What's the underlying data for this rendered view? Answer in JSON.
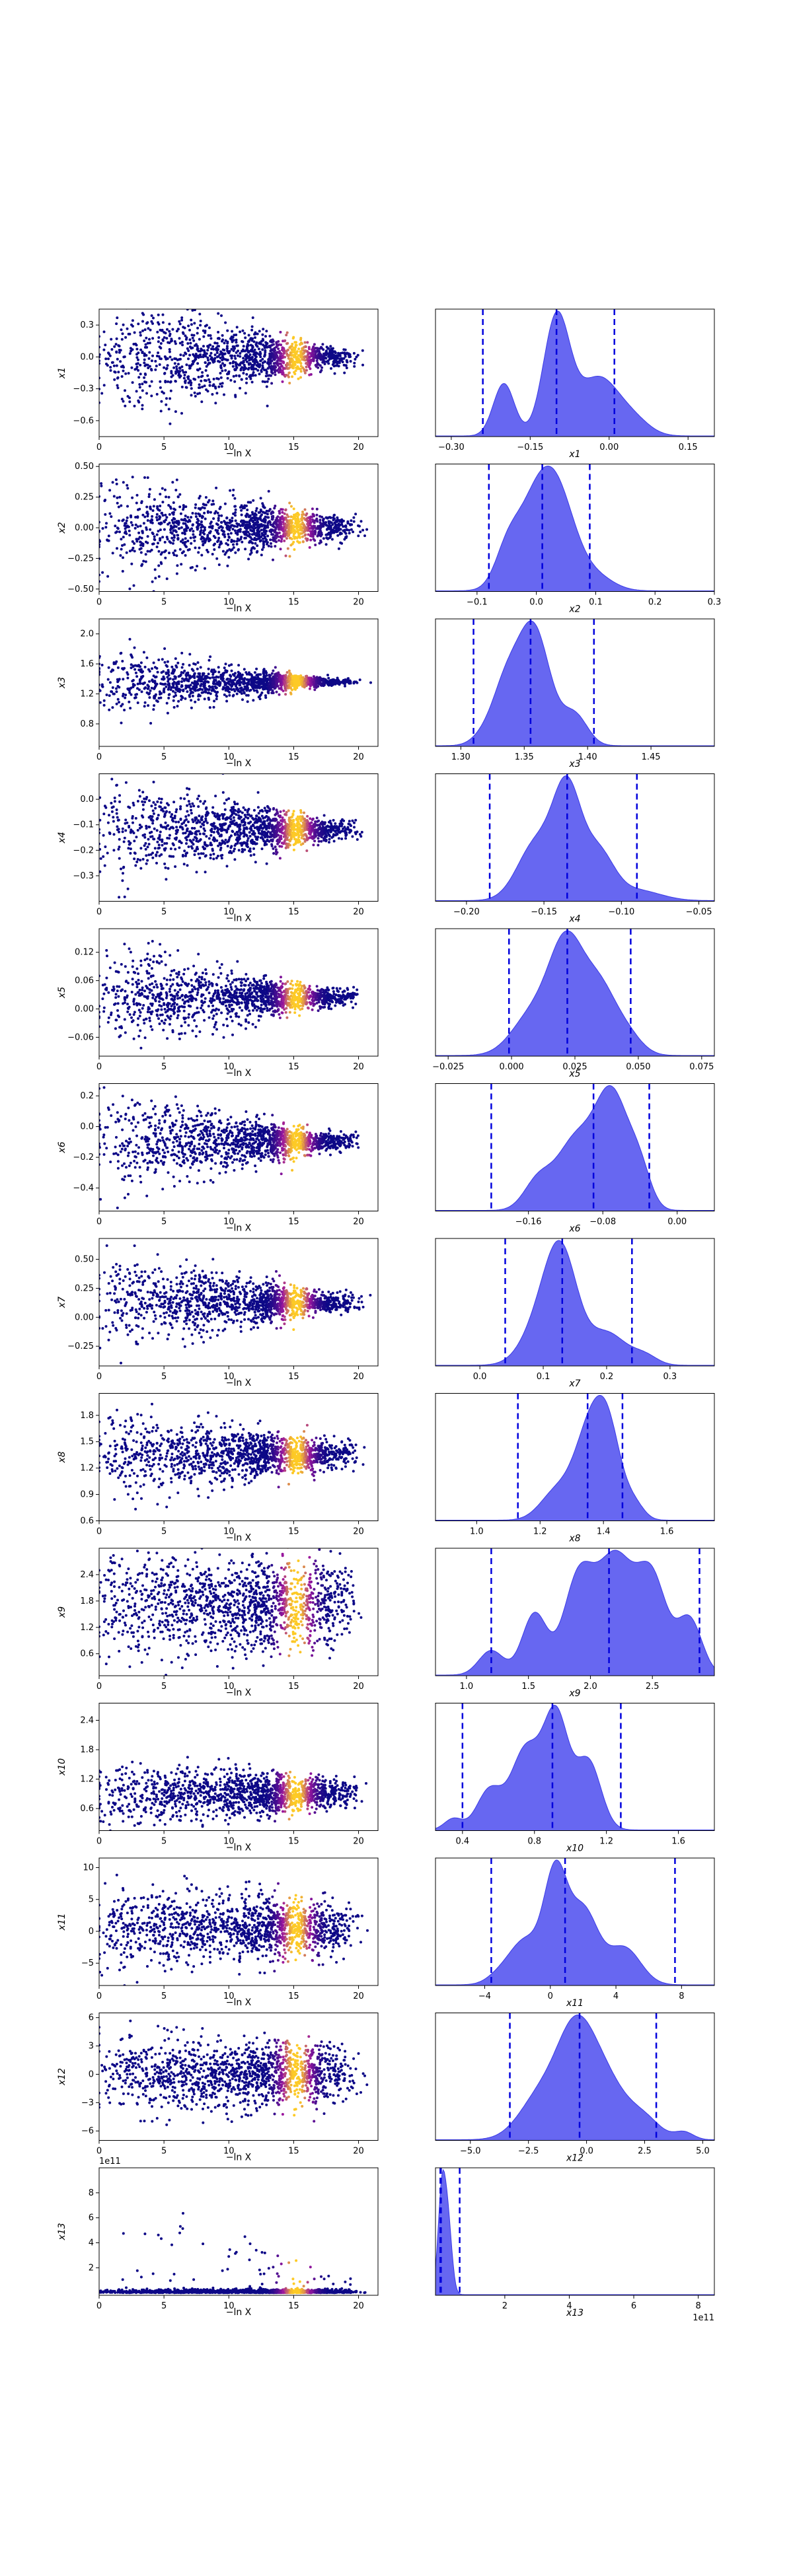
{
  "figure": {
    "colors": {
      "kde_fill": "#5a5af0",
      "kde_line": "#3a3ae6",
      "ci_line": "#0000dd",
      "scatter_low": "#0d0887",
      "scatter_mid": "#9c179e",
      "scatter_high": "#fdca26"
    }
  },
  "chart_data": [
    {
      "type": "scatter",
      "param": "x1",
      "xlabel": "−ln X",
      "ylabel": "x1",
      "xlim": [
        0,
        21.5
      ],
      "ylim": [
        -0.75,
        0.45
      ],
      "xticks": [
        "0",
        "5",
        "10",
        "15",
        "20"
      ],
      "yticks": [
        "−0.6",
        "−0.3",
        "0.0",
        "0.3"
      ],
      "ytick_values": [
        -0.6,
        -0.3,
        0,
        0.3
      ],
      "center": 0.0,
      "spread": [
        0.28,
        0.05
      ],
      "offset": ""
    },
    {
      "type": "area",
      "param": "x1",
      "xlabel": "x1",
      "xlim": [
        -0.33,
        0.2
      ],
      "xticks": [
        "−0.30",
        "−0.15",
        "0.00",
        "0.15"
      ],
      "xtick_values": [
        -0.3,
        -0.15,
        0,
        0.15
      ],
      "ci": [
        -0.24,
        -0.1,
        0.01
      ],
      "peaks": [
        [
          -0.1,
          0.025,
          1.0
        ],
        [
          -0.2,
          0.02,
          0.45
        ],
        [
          -0.02,
          0.04,
          0.5
        ],
        [
          0.05,
          0.03,
          0.1
        ]
      ]
    },
    {
      "type": "scatter",
      "param": "x2",
      "xlabel": "−ln X",
      "ylabel": "x2",
      "xlim": [
        0,
        21.5
      ],
      "ylim": [
        -0.52,
        0.52
      ],
      "xticks": [
        "0",
        "5",
        "10",
        "15",
        "20"
      ],
      "yticks": [
        "−0.50",
        "−0.25",
        "0.00",
        "0.25",
        "0.50"
      ],
      "ytick_values": [
        -0.5,
        -0.25,
        0,
        0.25,
        0.5
      ],
      "center": 0.0,
      "spread": [
        0.2,
        0.05
      ],
      "offset": ""
    },
    {
      "type": "area",
      "param": "x2",
      "xlabel": "x2",
      "xlim": [
        -0.17,
        0.3
      ],
      "xticks": [
        "−0.1",
        "0.0",
        "0.1",
        "0.2",
        "0.3"
      ],
      "xtick_values": [
        -0.1,
        0,
        0.1,
        0.2,
        0.3
      ],
      "ci": [
        -0.08,
        0.01,
        0.09
      ],
      "peaks": [
        [
          0.0,
          0.035,
          0.95
        ],
        [
          0.04,
          0.03,
          0.7
        ],
        [
          -0.05,
          0.02,
          0.3
        ],
        [
          0.1,
          0.03,
          0.15
        ]
      ]
    },
    {
      "type": "scatter",
      "param": "x3",
      "xlabel": "−ln X",
      "ylabel": "x3",
      "xlim": [
        0,
        21.5
      ],
      "ylim": [
        0.5,
        2.2
      ],
      "xticks": [
        "0",
        "5",
        "10",
        "15",
        "20"
      ],
      "yticks": [
        "0.8",
        "1.2",
        "1.6",
        "2.0"
      ],
      "ytick_values": [
        0.8,
        1.2,
        1.6,
        2.0
      ],
      "center": 1.36,
      "spread": [
        0.22,
        0.02
      ],
      "offset": ""
    },
    {
      "type": "area",
      "param": "x3",
      "xlabel": "x3",
      "xlim": [
        1.28,
        1.5
      ],
      "xticks": [
        "1.30",
        "1.35",
        "1.40",
        "1.45"
      ],
      "xtick_values": [
        1.3,
        1.35,
        1.4,
        1.45
      ],
      "ci": [
        1.31,
        1.355,
        1.405
      ],
      "peaks": [
        [
          1.357,
          0.013,
          1.0
        ],
        [
          1.335,
          0.01,
          0.4
        ],
        [
          1.39,
          0.01,
          0.25
        ],
        [
          1.32,
          0.01,
          0.1
        ]
      ]
    },
    {
      "type": "scatter",
      "param": "x4",
      "xlabel": "−ln X",
      "ylabel": "x4",
      "xlim": [
        0,
        21.5
      ],
      "ylim": [
        -0.4,
        0.1
      ],
      "xticks": [
        "0",
        "5",
        "10",
        "15",
        "20"
      ],
      "yticks": [
        "−0.3",
        "−0.2",
        "−0.1",
        "0.0"
      ],
      "ytick_values": [
        -0.3,
        -0.2,
        -0.1,
        0
      ],
      "center": -0.12,
      "spread": [
        0.1,
        0.02
      ],
      "offset": ""
    },
    {
      "type": "area",
      "param": "x4",
      "xlabel": "x4",
      "xlim": [
        -0.22,
        -0.04
      ],
      "xticks": [
        "−0.20",
        "−0.15",
        "−0.10",
        "−0.05"
      ],
      "xtick_values": [
        -0.2,
        -0.15,
        -0.1,
        -0.05
      ],
      "ci": [
        -0.185,
        -0.135,
        -0.09
      ],
      "peaks": [
        [
          -0.135,
          0.009,
          1.0
        ],
        [
          -0.155,
          0.012,
          0.55
        ],
        [
          -0.115,
          0.01,
          0.45
        ],
        [
          -0.09,
          0.015,
          0.1
        ]
      ]
    },
    {
      "type": "scatter",
      "param": "x5",
      "xlabel": "−ln X",
      "ylabel": "x5",
      "xlim": [
        0,
        21.5
      ],
      "ylim": [
        -0.1,
        0.17
      ],
      "xticks": [
        "0",
        "5",
        "10",
        "15",
        "20"
      ],
      "yticks": [
        "−0.06",
        "0.00",
        "0.06",
        "0.12"
      ],
      "ytick_values": [
        -0.06,
        0,
        0.06,
        0.12
      ],
      "center": 0.025,
      "spread": [
        0.05,
        0.008
      ],
      "offset": ""
    },
    {
      "type": "area",
      "param": "x5",
      "xlabel": "x5",
      "xlim": [
        -0.03,
        0.08
      ],
      "xticks": [
        "−0.025",
        "0.000",
        "0.025",
        "0.050",
        "0.075"
      ],
      "xtick_values": [
        -0.025,
        0,
        0.025,
        0.05,
        0.075
      ],
      "ci": [
        -0.001,
        0.022,
        0.047
      ],
      "peaks": [
        [
          0.022,
          0.007,
          1.0
        ],
        [
          0.035,
          0.006,
          0.5
        ],
        [
          0.008,
          0.008,
          0.35
        ],
        [
          0.045,
          0.006,
          0.2
        ]
      ]
    },
    {
      "type": "scatter",
      "param": "x6",
      "xlabel": "−ln X",
      "ylabel": "x6",
      "xlim": [
        0,
        21.5
      ],
      "ylim": [
        -0.55,
        0.28
      ],
      "xticks": [
        "0",
        "5",
        "10",
        "15",
        "20"
      ],
      "yticks": [
        "−0.4",
        "−0.2",
        "0.0",
        "0.2"
      ],
      "ytick_values": [
        -0.4,
        -0.2,
        0,
        0.2
      ],
      "center": -0.1,
      "spread": [
        0.16,
        0.03
      ],
      "offset": ""
    },
    {
      "type": "area",
      "param": "x6",
      "xlabel": "x6",
      "xlim": [
        -0.26,
        0.04
      ],
      "xticks": [
        "−0.16",
        "−0.08",
        "0.00"
      ],
      "xtick_values": [
        -0.16,
        -0.08,
        0
      ],
      "ci": [
        -0.2,
        -0.09,
        -0.03
      ],
      "peaks": [
        [
          -0.07,
          0.018,
          1.0
        ],
        [
          -0.11,
          0.02,
          0.6
        ],
        [
          -0.15,
          0.015,
          0.25
        ],
        [
          -0.04,
          0.012,
          0.3
        ]
      ]
    },
    {
      "type": "scatter",
      "param": "x7",
      "xlabel": "−ln X",
      "ylabel": "x7",
      "xlim": [
        0,
        21.5
      ],
      "ylim": [
        -0.42,
        0.68
      ],
      "xticks": [
        "0",
        "5",
        "10",
        "15",
        "20"
      ],
      "yticks": [
        "−0.25",
        "0.00",
        "0.25",
        "0.50"
      ],
      "ytick_values": [
        -0.25,
        0,
        0.25,
        0.5
      ],
      "center": 0.13,
      "spread": [
        0.2,
        0.04
      ],
      "offset": ""
    },
    {
      "type": "area",
      "param": "x7",
      "xlabel": "x7",
      "xlim": [
        -0.07,
        0.37
      ],
      "xticks": [
        "0.0",
        "0.1",
        "0.2",
        "0.3"
      ],
      "xtick_values": [
        0,
        0.1,
        0.2,
        0.3
      ],
      "ci": [
        0.04,
        0.13,
        0.24
      ],
      "peaks": [
        [
          0.13,
          0.025,
          1.0
        ],
        [
          0.1,
          0.03,
          0.5
        ],
        [
          0.2,
          0.03,
          0.35
        ],
        [
          0.26,
          0.02,
          0.1
        ]
      ]
    },
    {
      "type": "scatter",
      "param": "x8",
      "xlabel": "−ln X",
      "ylabel": "x8",
      "xlim": [
        0,
        21.5
      ],
      "ylim": [
        0.6,
        2.05
      ],
      "xticks": [
        "0",
        "5",
        "10",
        "15",
        "20"
      ],
      "yticks": [
        "0.6",
        "0.9",
        "1.2",
        "1.5",
        "1.8"
      ],
      "ytick_values": [
        0.6,
        0.9,
        1.2,
        1.5,
        1.8
      ],
      "center": 1.35,
      "spread": [
        0.25,
        0.08
      ],
      "offset": ""
    },
    {
      "type": "area",
      "param": "x8",
      "xlabel": "x8",
      "xlim": [
        0.87,
        1.75
      ],
      "xticks": [
        "1.0",
        "1.2",
        "1.4",
        "1.6"
      ],
      "xtick_values": [
        1,
        1.2,
        1.4,
        1.6
      ],
      "ci": [
        1.13,
        1.35,
        1.46
      ],
      "peaks": [
        [
          1.36,
          0.05,
          1.0
        ],
        [
          1.42,
          0.04,
          0.7
        ],
        [
          1.25,
          0.05,
          0.3
        ],
        [
          1.5,
          0.03,
          0.15
        ]
      ]
    },
    {
      "type": "scatter",
      "param": "x9",
      "xlabel": "−ln X",
      "ylabel": "x9",
      "xlim": [
        0,
        21.5
      ],
      "ylim": [
        0.1,
        3.0
      ],
      "xticks": [
        "0",
        "5",
        "10",
        "15",
        "20"
      ],
      "yticks": [
        "0.6",
        "1.2",
        "1.8",
        "2.4"
      ],
      "ytick_values": [
        0.6,
        1.2,
        1.8,
        2.4
      ],
      "center": 1.7,
      "spread": [
        0.65,
        0.5
      ],
      "offset": ""
    },
    {
      "type": "area",
      "param": "x9",
      "xlabel": "x9",
      "xlim": [
        0.75,
        3.0
      ],
      "xticks": [
        "1.0",
        "1.5",
        "2.0",
        "2.5"
      ],
      "xtick_values": [
        1,
        1.5,
        2,
        2.5
      ],
      "ci": [
        1.2,
        2.15,
        2.88
      ],
      "peaks": [
        [
          2.2,
          0.15,
          0.95
        ],
        [
          1.9,
          0.12,
          0.75
        ],
        [
          2.5,
          0.12,
          0.75
        ],
        [
          1.55,
          0.1,
          0.5
        ],
        [
          1.2,
          0.1,
          0.2
        ],
        [
          2.8,
          0.1,
          0.45
        ]
      ]
    },
    {
      "type": "scatter",
      "param": "x10",
      "xlabel": "−ln X",
      "ylabel": "x10",
      "xlim": [
        0,
        21.5
      ],
      "ylim": [
        0.15,
        2.75
      ],
      "xticks": [
        "0",
        "5",
        "10",
        "15",
        "20"
      ],
      "yticks": [
        "0.6",
        "1.2",
        "1.8",
        "2.4"
      ],
      "ytick_values": [
        0.6,
        1.2,
        1.8,
        2.4
      ],
      "center": 0.9,
      "spread": [
        0.35,
        0.15
      ],
      "offset": ""
    },
    {
      "type": "area",
      "param": "x10",
      "xlabel": "x10",
      "xlim": [
        0.25,
        1.8
      ],
      "xticks": [
        "0.4",
        "0.8",
        "1.2",
        "1.6"
      ],
      "xtick_values": [
        0.4,
        0.8,
        1.2,
        1.6
      ],
      "ci": [
        0.4,
        0.9,
        1.28
      ],
      "peaks": [
        [
          0.92,
          0.07,
          1.0
        ],
        [
          0.75,
          0.08,
          0.7
        ],
        [
          0.55,
          0.07,
          0.35
        ],
        [
          1.1,
          0.07,
          0.6
        ],
        [
          0.35,
          0.05,
          0.1
        ]
      ]
    },
    {
      "type": "scatter",
      "param": "x11",
      "xlabel": "−ln X",
      "ylabel": "x11",
      "xlim": [
        0,
        21.5
      ],
      "ylim": [
        -8.5,
        11.5
      ],
      "xticks": [
        "0",
        "5",
        "10",
        "15",
        "20"
      ],
      "yticks": [
        "−5",
        "0",
        "5",
        "10"
      ],
      "ytick_values": [
        -5,
        0,
        5,
        10
      ],
      "center": 0.5,
      "spread": [
        3.2,
        2.0
      ],
      "offset": ""
    },
    {
      "type": "area",
      "param": "x11",
      "xlabel": "x11",
      "xlim": [
        -7,
        10
      ],
      "xticks": [
        "−4",
        "0",
        "4",
        "8"
      ],
      "xtick_values": [
        -4,
        0,
        4,
        8
      ],
      "ci": [
        -3.6,
        0.9,
        7.6
      ],
      "peaks": [
        [
          0.3,
          0.7,
          1.0
        ],
        [
          2.0,
          0.9,
          0.7
        ],
        [
          -1.5,
          0.9,
          0.4
        ],
        [
          4.5,
          1.0,
          0.35
        ],
        [
          -3,
          0.8,
          0.1
        ]
      ]
    },
    {
      "type": "scatter",
      "param": "x12",
      "xlabel": "−ln X",
      "ylabel": "x12",
      "xlim": [
        0,
        21.5
      ],
      "ylim": [
        -7,
        6.5
      ],
      "xticks": [
        "0",
        "5",
        "10",
        "15",
        "20"
      ],
      "yticks": [
        "−6",
        "−3",
        "0",
        "3",
        "6"
      ],
      "ytick_values": [
        -6,
        -3,
        0,
        3,
        6
      ],
      "center": 0.0,
      "spread": [
        2.0,
        1.5
      ],
      "offset": ""
    },
    {
      "type": "area",
      "param": "x12",
      "xlabel": "x12",
      "xlim": [
        -6.5,
        5.5
      ],
      "xticks": [
        "−5.0",
        "−2.5",
        "0.0",
        "2.5",
        "5.0"
      ],
      "xtick_values": [
        -5,
        -2.5,
        0,
        2.5,
        5
      ],
      "ci": [
        -3.3,
        -0.3,
        3.0
      ],
      "peaks": [
        [
          -0.5,
          0.8,
          1.0
        ],
        [
          0.8,
          0.9,
          0.6
        ],
        [
          -2,
          0.9,
          0.45
        ],
        [
          2.5,
          0.7,
          0.2
        ],
        [
          4.2,
          0.4,
          0.08
        ]
      ]
    },
    {
      "type": "scatter",
      "param": "x13",
      "xlabel": "−ln X",
      "ylabel": "x13",
      "xlim": [
        0,
        21.5
      ],
      "ylim": [
        -0.2,
        10
      ],
      "xticks": [
        "0",
        "5",
        "10",
        "15",
        "20"
      ],
      "yticks": [
        "2",
        "4",
        "6",
        "8"
      ],
      "ytick_values": [
        2,
        4,
        6,
        8
      ],
      "center": 0.15,
      "spread": [
        0.3,
        0.1
      ],
      "offset": "1e11",
      "heavy_tail": true
    },
    {
      "type": "area",
      "param": "x13",
      "xlabel": "x13",
      "xlim": [
        -0.15,
        8.5
      ],
      "xticks": [
        "2",
        "4",
        "6",
        "8"
      ],
      "xtick_values": [
        2,
        4,
        6,
        8
      ],
      "ci": [
        0.0,
        0.02,
        0.6
      ],
      "peaks": [
        [
          0.05,
          0.12,
          1.0
        ],
        [
          0.25,
          0.12,
          0.6
        ]
      ],
      "offset": "1e11"
    }
  ]
}
